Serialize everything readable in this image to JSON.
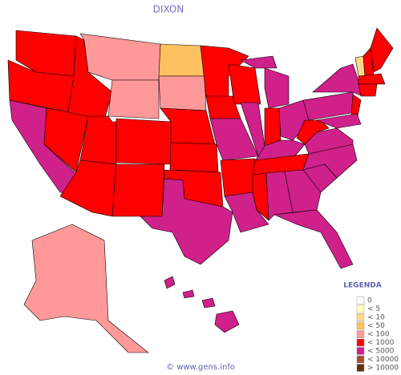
{
  "title": "DIXON",
  "legend": {
    "title": "LEGENDA",
    "items": [
      {
        "label": "0",
        "color": "#ffffff"
      },
      {
        "label": "< 5",
        "color": "#ffffc0"
      },
      {
        "label": "< 10",
        "color": "#ffd888"
      },
      {
        "label": "< 50",
        "color": "#ffc060"
      },
      {
        "label": "< 100",
        "color": "#ff9999"
      },
      {
        "label": "< 1000",
        "color": "#ff0000"
      },
      {
        "label": "< 5000",
        "color": "#d0208a"
      },
      {
        "label": "< 10000",
        "color": "#a0522d"
      },
      {
        "label": "> 10000",
        "color": "#603010"
      }
    ]
  },
  "regions": [
    5,
    5,
    6,
    5,
    5,
    4,
    4,
    5,
    5,
    5,
    5,
    3,
    4,
    5,
    5,
    5,
    6,
    5,
    5,
    6,
    5,
    6,
    5,
    6,
    6,
    6,
    5,
    6,
    6,
    5,
    5,
    6,
    6,
    6,
    6,
    6,
    6,
    5,
    6,
    6,
    5,
    6,
    2,
    5,
    5,
    5,
    5,
    4,
    6,
    6,
    6,
    6
  ],
  "footer": "© www.gens.info"
}
